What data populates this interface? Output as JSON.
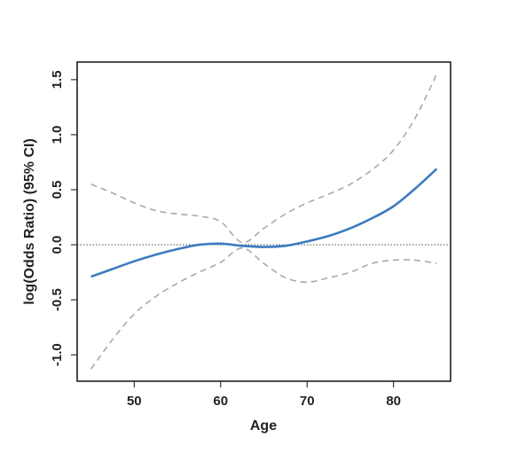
{
  "chart_data": {
    "type": "line",
    "x_label": "Age",
    "y_label": "log(Odds Ratio) (95% CI)",
    "x": [
      45,
      47.5,
      50,
      52.5,
      55,
      57.5,
      60,
      62.5,
      65,
      67.5,
      70,
      72.5,
      75,
      77.5,
      80,
      82.5,
      85
    ],
    "series": [
      {
        "color": "#3d7bbf",
        "style": "solid",
        "values": [
          -0.29,
          -0.22,
          -0.15,
          -0.09,
          -0.04,
          0.0,
          0.01,
          -0.01,
          -0.02,
          -0.01,
          0.03,
          0.08,
          0.15,
          0.24,
          0.35,
          0.51,
          0.69
        ]
      },
      {
        "color": "#aaaaaa",
        "style": "dashed",
        "values": [
          0.55,
          0.47,
          0.38,
          0.31,
          0.28,
          0.26,
          0.21,
          0.02,
          0.15,
          0.28,
          0.38,
          0.46,
          0.55,
          0.68,
          0.86,
          1.15,
          1.55
        ]
      },
      {
        "color": "#aaaaaa",
        "style": "dashed",
        "values": [
          -1.13,
          -0.86,
          -0.63,
          -0.47,
          -0.35,
          -0.25,
          -0.16,
          -0.03,
          -0.17,
          -0.3,
          -0.34,
          -0.3,
          -0.25,
          -0.17,
          -0.14,
          -0.14,
          -0.17
        ]
      }
    ],
    "reference_line": 0,
    "xlim": [
      43.4,
      86.6
    ],
    "ylim": [
      -1.24,
      1.66
    ],
    "xticks": [
      50,
      60,
      70,
      80
    ],
    "yticks": [
      {
        "value": -1,
        "label": "-1.0"
      },
      {
        "value": -0.5,
        "label": "-0.5"
      },
      {
        "value": 0,
        "label": "0.0"
      },
      {
        "value": 0.5,
        "label": "0.5"
      },
      {
        "value": 1,
        "label": "1.0"
      },
      {
        "value": 1.5,
        "label": "1.5"
      }
    ]
  }
}
